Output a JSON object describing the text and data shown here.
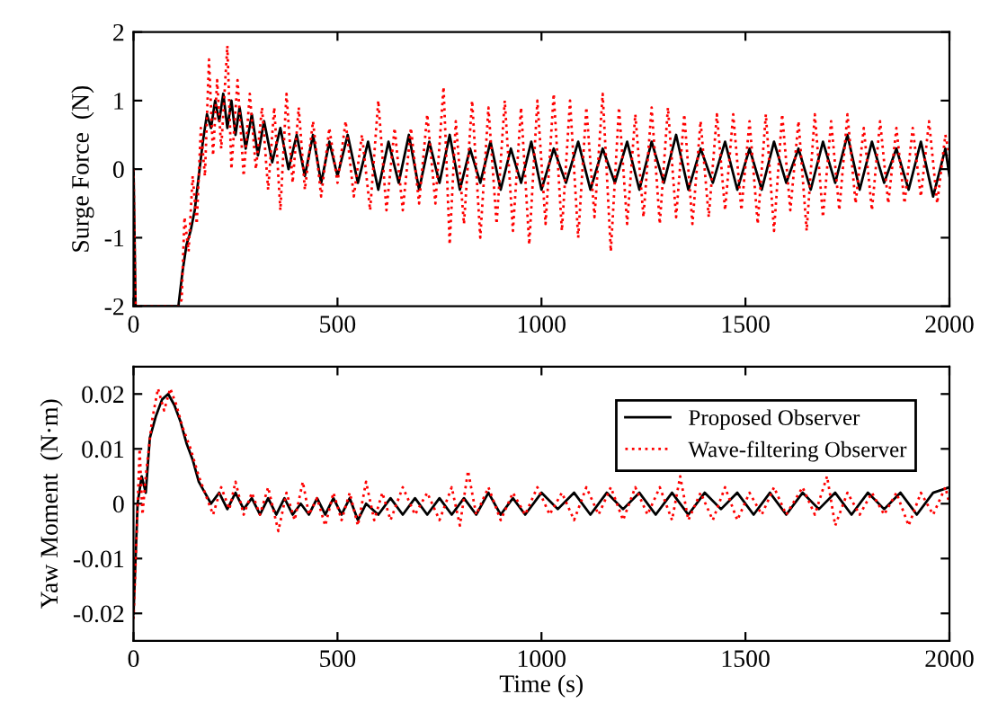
{
  "chart_data": [
    {
      "type": "line",
      "ylabel": "Surge Force  (N)",
      "xlim": [
        0,
        2000
      ],
      "xticks": [
        0,
        500,
        1000,
        1500,
        2000
      ],
      "ylim": [
        -2,
        2
      ],
      "yticks": [
        -2,
        -1,
        0,
        1,
        2
      ],
      "grid": false,
      "legend": false,
      "series": [
        {
          "color": "#000000",
          "line_style": "solid",
          "x": [
            0,
            5,
            110,
            120,
            130,
            140,
            150,
            160,
            170,
            180,
            190,
            200,
            210,
            220,
            230,
            240,
            250,
            260,
            275,
            290,
            305,
            320,
            340,
            360,
            380,
            400,
            420,
            440,
            460,
            480,
            500,
            525,
            550,
            575,
            600,
            625,
            650,
            675,
            700,
            725,
            750,
            775,
            800,
            825,
            850,
            875,
            900,
            925,
            950,
            975,
            1000,
            1030,
            1060,
            1090,
            1120,
            1150,
            1180,
            1210,
            1240,
            1270,
            1300,
            1330,
            1360,
            1390,
            1420,
            1450,
            1480,
            1510,
            1540,
            1570,
            1600,
            1630,
            1660,
            1690,
            1720,
            1750,
            1780,
            1810,
            1840,
            1870,
            1900,
            1930,
            1960,
            1990,
            2000
          ],
          "values": [
            0,
            -2,
            -2,
            -1.5,
            -1.1,
            -0.9,
            -0.6,
            -0.1,
            0.4,
            0.8,
            0.6,
            1.0,
            0.7,
            1.1,
            0.6,
            1.0,
            0.5,
            0.9,
            0.3,
            0.8,
            0.2,
            0.7,
            0.1,
            0.6,
            0.0,
            0.5,
            -0.1,
            0.5,
            -0.2,
            0.4,
            -0.1,
            0.5,
            -0.2,
            0.4,
            -0.3,
            0.4,
            -0.2,
            0.5,
            -0.3,
            0.4,
            -0.2,
            0.5,
            -0.3,
            0.3,
            -0.2,
            0.4,
            -0.3,
            0.3,
            -0.2,
            0.4,
            -0.3,
            0.3,
            -0.2,
            0.4,
            -0.3,
            0.3,
            -0.2,
            0.4,
            -0.3,
            0.4,
            -0.2,
            0.5,
            -0.3,
            0.3,
            -0.2,
            0.4,
            -0.3,
            0.3,
            -0.3,
            0.4,
            -0.2,
            0.3,
            -0.3,
            0.4,
            -0.2,
            0.5,
            -0.3,
            0.4,
            -0.2,
            0.3,
            -0.3,
            0.4,
            -0.4,
            0.3,
            -0.1
          ]
        },
        {
          "color": "#ff0000",
          "line_style": "dotted",
          "x": [
            0,
            5,
            110,
            118,
            125,
            135,
            145,
            155,
            165,
            175,
            185,
            195,
            205,
            215,
            230,
            240,
            255,
            270,
            285,
            300,
            315,
            330,
            345,
            360,
            375,
            390,
            405,
            420,
            440,
            460,
            480,
            500,
            520,
            540,
            560,
            580,
            600,
            620,
            640,
            660,
            680,
            700,
            720,
            740,
            760,
            775,
            790,
            810,
            830,
            850,
            870,
            890,
            910,
            930,
            950,
            970,
            990,
            1010,
            1030,
            1050,
            1070,
            1090,
            1110,
            1130,
            1150,
            1170,
            1190,
            1210,
            1230,
            1250,
            1270,
            1290,
            1310,
            1330,
            1350,
            1370,
            1390,
            1410,
            1430,
            1450,
            1470,
            1490,
            1510,
            1530,
            1550,
            1570,
            1590,
            1610,
            1630,
            1650,
            1670,
            1690,
            1710,
            1730,
            1750,
            1770,
            1790,
            1810,
            1830,
            1850,
            1870,
            1890,
            1910,
            1930,
            1950,
            1970,
            1990,
            2000
          ],
          "values": [
            0,
            -2,
            -2,
            -1.9,
            -0.7,
            -1.2,
            -0.1,
            -0.8,
            0.6,
            -0.1,
            1.6,
            0.2,
            1.3,
            0.3,
            1.8,
            0.0,
            1.3,
            -0.1,
            1.1,
            0.0,
            0.9,
            -0.3,
            0.9,
            -0.6,
            1.1,
            -0.2,
            0.9,
            -0.3,
            0.7,
            -0.4,
            0.6,
            -0.2,
            0.7,
            -0.4,
            0.5,
            -0.6,
            1.0,
            -0.6,
            0.6,
            -0.6,
            0.6,
            -0.5,
            0.8,
            -0.5,
            1.2,
            -1.1,
            0.7,
            -0.8,
            1.0,
            -1.0,
            0.9,
            -0.8,
            1.0,
            -0.9,
            0.9,
            -1.1,
            1.0,
            -0.8,
            1.1,
            -0.9,
            1.0,
            -1.0,
            0.9,
            -0.7,
            1.1,
            -1.2,
            0.9,
            -0.8,
            0.8,
            -0.7,
            0.9,
            -0.8,
            0.9,
            -0.7,
            0.8,
            -0.8,
            0.7,
            -0.7,
            0.8,
            -0.6,
            0.8,
            -0.6,
            0.7,
            -0.8,
            0.8,
            -0.9,
            0.8,
            -0.6,
            0.7,
            -0.9,
            0.8,
            -0.7,
            0.7,
            -0.6,
            0.8,
            -0.5,
            0.6,
            -0.6,
            0.7,
            -0.5,
            0.6,
            -0.5,
            0.6,
            -0.4,
            0.7,
            -0.5,
            0.5,
            0.2
          ]
        }
      ]
    },
    {
      "type": "line",
      "xlabel": "Time (s)",
      "ylabel": "Yaw Moment  (N·m)",
      "xlim": [
        0,
        2000
      ],
      "xticks": [
        0,
        500,
        1000,
        1500,
        2000
      ],
      "ylim": [
        -0.025,
        0.025
      ],
      "yticks": [
        -0.02,
        -0.01,
        0,
        0.01,
        0.02
      ],
      "grid": false,
      "legend": "top right",
      "series": [
        {
          "name": "Proposed Observer",
          "color": "#000000",
          "line_style": "solid",
          "x": [
            0,
            10,
            20,
            30,
            40,
            55,
            70,
            85,
            100,
            115,
            130,
            145,
            160,
            175,
            190,
            210,
            230,
            250,
            270,
            290,
            310,
            330,
            350,
            370,
            390,
            410,
            430,
            450,
            470,
            490,
            510,
            530,
            550,
            570,
            600,
            630,
            660,
            690,
            720,
            750,
            780,
            810,
            840,
            870,
            900,
            930,
            960,
            1000,
            1040,
            1080,
            1120,
            1160,
            1200,
            1240,
            1280,
            1320,
            1360,
            1400,
            1440,
            1480,
            1520,
            1560,
            1600,
            1640,
            1680,
            1720,
            1760,
            1800,
            1840,
            1880,
            1920,
            1960,
            2000
          ],
          "values": [
            -0.02,
            0.0,
            0.005,
            0.002,
            0.012,
            0.016,
            0.019,
            0.02,
            0.018,
            0.015,
            0.011,
            0.008,
            0.004,
            0.002,
            0.0,
            0.002,
            -0.001,
            0.002,
            -0.001,
            0.001,
            -0.002,
            0.001,
            -0.002,
            0.001,
            -0.002,
            0.0,
            -0.002,
            0.001,
            -0.002,
            0.001,
            -0.002,
            0.001,
            -0.003,
            0.0,
            -0.002,
            0.001,
            -0.002,
            0.001,
            -0.002,
            0.001,
            -0.002,
            0.001,
            -0.002,
            0.002,
            -0.002,
            0.001,
            -0.002,
            0.002,
            -0.001,
            0.002,
            -0.002,
            0.002,
            -0.001,
            0.002,
            -0.002,
            0.002,
            -0.002,
            0.002,
            -0.001,
            0.002,
            -0.002,
            0.002,
            -0.002,
            0.002,
            -0.001,
            0.002,
            -0.002,
            0.002,
            -0.001,
            0.002,
            -0.002,
            0.002,
            0.003
          ]
        },
        {
          "name": "Wave-filtering Observer",
          "color": "#ff0000",
          "line_style": "dotted",
          "x": [
            0,
            8,
            15,
            22,
            30,
            45,
            60,
            75,
            90,
            105,
            120,
            140,
            160,
            180,
            195,
            215,
            235,
            250,
            270,
            290,
            310,
            330,
            355,
            375,
            395,
            415,
            430,
            450,
            470,
            490,
            510,
            530,
            550,
            570,
            590,
            610,
            630,
            660,
            690,
            720,
            750,
            780,
            800,
            820,
            840,
            870,
            900,
            930,
            960,
            990,
            1020,
            1050,
            1080,
            1110,
            1140,
            1170,
            1200,
            1230,
            1260,
            1290,
            1320,
            1340,
            1360,
            1390,
            1420,
            1450,
            1480,
            1510,
            1540,
            1570,
            1600,
            1640,
            1670,
            1700,
            1720,
            1750,
            1780,
            1810,
            1840,
            1870,
            1900,
            1930,
            1960,
            1990,
            2000
          ],
          "values": [
            -0.021,
            -0.005,
            0.01,
            -0.002,
            0.005,
            0.015,
            0.021,
            0.017,
            0.021,
            0.018,
            0.014,
            0.01,
            0.005,
            0.001,
            -0.002,
            0.003,
            -0.001,
            0.004,
            -0.002,
            0.002,
            -0.002,
            0.003,
            -0.005,
            0.002,
            -0.003,
            0.004,
            -0.002,
            0.001,
            -0.004,
            0.002,
            -0.003,
            0.002,
            -0.004,
            0.004,
            -0.003,
            0.002,
            -0.003,
            0.003,
            -0.002,
            0.002,
            -0.003,
            0.003,
            -0.004,
            0.006,
            -0.002,
            0.003,
            -0.003,
            0.002,
            -0.002,
            0.003,
            -0.002,
            0.002,
            -0.003,
            0.003,
            -0.002,
            0.003,
            -0.003,
            0.003,
            -0.002,
            0.003,
            -0.003,
            0.005,
            -0.003,
            0.002,
            -0.003,
            0.003,
            -0.003,
            0.002,
            -0.002,
            0.003,
            -0.002,
            0.003,
            -0.002,
            0.005,
            -0.004,
            0.002,
            -0.002,
            0.002,
            -0.002,
            0.002,
            -0.004,
            0.002,
            -0.002,
            0.003,
            0.0
          ]
        }
      ]
    }
  ]
}
